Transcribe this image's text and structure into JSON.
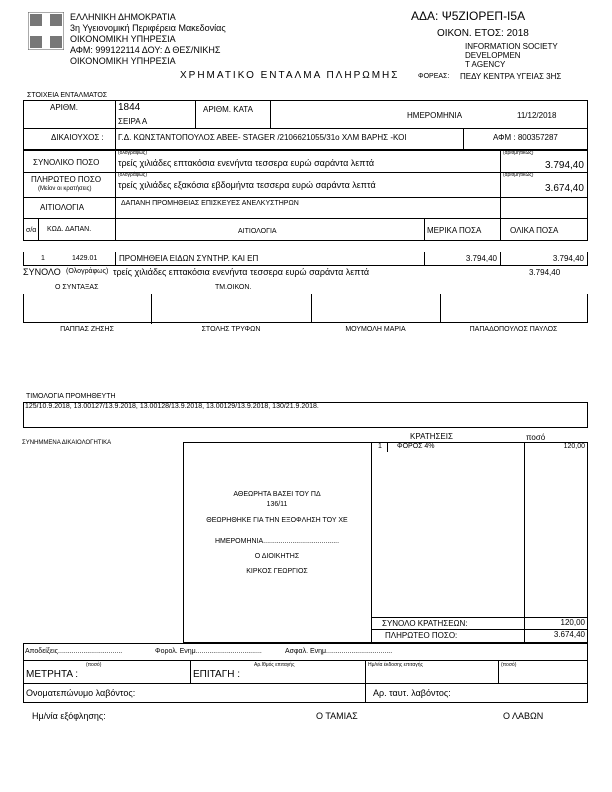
{
  "header": {
    "org_lines": [
      "ΕΛΛΗΝΙΚΗ ΔΗΜΟΚΡΑΤΙΑ",
      "3η Υγειονομική Περιφέρεια Μακεδονίας",
      "ΟΙΚΟΝΟΜΙΚΗ ΥΠΗΡΕΣΙΑ",
      "ΑΦΜ: 999122114 ΔΟΥ: Δ ΘΕΣ/ΝΙΚΗΣ",
      "ΟΙΚΟΝΟΜΙΚΗ ΥΠΗΡΕΣΙΑ"
    ],
    "ada": "ΑΔΑ: Ψ5ΖΙΟΡΕΠ-Ι5Α",
    "fiscal_year": "ΟΙΚΟΝ. ΕΤΟΣ: 2018",
    "stamp_lines": [
      "INFORMATION SOCIETY",
      "DEVELOPMEN",
      "T AGENCY"
    ],
    "title": "ΧΡΗΜΑΤΙΚΟ ΕΝΤΑΛΜΑ ΠΛΗΡΩΜΗΣ",
    "foreas_label": "ΦΟΡΕΑΣ:",
    "foreas_value": "ΠΕΔΥ ΚΕΝΤΡΑ ΥΓΕΙΑΣ 3ΗΣ"
  },
  "section_label": "ΣΤΟΙΧΕΙΑ ΕΝΤΑΛΜΑΤΟΣ",
  "order": {
    "number_label": "ΑΡΙΘΜ.",
    "number": "1844",
    "series": "ΣΕΙΡΑ Α",
    "kata_label": "ΑΡΙΘΜ. ΚΑΤΑ",
    "date_label": "ΗΜΕΡΟΜΗΝΙΑ",
    "date": "11/12/2018",
    "beneficiary_label": "ΔΙΚΑΙΟΥΧΟΣ :",
    "beneficiary": "Γ.Δ. ΚΩΝΣΤΑΝΤΟΠΟΥΛΟΣ ΑΒΕΕ- STAGER /2106621055/31ο ΧΛΜ ΒΑΡΗΣ -ΚΟΙ",
    "afm": "ΑΦΜ : 800357287"
  },
  "amounts": {
    "words_hint": "(ολογράφως)",
    "digits_hint": "(αριθμητικώς)",
    "total_label": "ΣΥΝΟΛΙΚΟ ΠΟΣΟ",
    "total_words": "τρείς χιλιάδες επτακόσια ενενήντα τεσσερα  ευρώ  σαράντα  λεπτά",
    "total": "3.794,40",
    "payable_label": "ΠΛΗΡΩΤΕΟ ΠΟΣΟ",
    "payable_sub": "(Μείον οι κρατήσεις)",
    "payable_words": "τρείς χιλιάδες εξακόσια  εβδομήντα τεσσερα  ευρώ  σαράντα  λεπτά",
    "payable": "3.674,40",
    "reason_label": "ΑΙΤΙΟΛΟΓΙΑ",
    "reason": "ΔΑΠΑΝΗ ΠΡΟΜΗΘΕΙΑΣ ΕΠΙΣΚΕΥΕΣ ΑΝΕΛΚΥΣΤΗΡΩΝ"
  },
  "items_table": {
    "headers": [
      "σ/α",
      "ΚΩΔ. ΔΑΠΑΝ.",
      "ΑΙΤΙΟΛΟΓΙΑ",
      "ΜΕΡΙΚΑ ΠΟΣΑ",
      "ΟΛΙΚΑ ΠΟΣΑ"
    ],
    "rows": [
      [
        "1",
        "1429.01",
        "ΠΡΟΜΗΘΕΙΑ ΕΙΔΩΝ ΣΥΝΤΗΡ. ΚΑΙ ΕΠ",
        "3.794,40",
        "3.794,40"
      ]
    ],
    "sum_label": "ΣΥΝΟΛΟ",
    "sum_hint": "(Ολογράφως)",
    "sum_words": "τρείς χιλιάδες επτακόσια ενενήντα τεσσερα  ευρώ  σαράντα  λεπτά",
    "sum": "3.794,40"
  },
  "signatures": {
    "headers": [
      "Ο ΣΥΝΤΑΞΑΣ",
      "ΤΜ.ΟΙΚΟΝ."
    ],
    "names": [
      "ΠΑΠΠΑΣ ΖΗΣΗΣ",
      "ΣΤΟΛΗΣ ΤΡΥΦΩΝ",
      "ΜΟΥΜΟΛΗ ΜΑΡΙΑ",
      "ΠΑΠΑΔΟΠΟΥΛΟΣ ΠΑΥΛΟΣ"
    ]
  },
  "invoices": {
    "label": "ΤΙΜΟΛΟΓΙΑ ΠΡΟΜΗΘΕΥΤΗ",
    "value": "125/10.9.2018, 13.00127/13.9.2018, 13.00128/13.9.2018, 13.00129/13.9.2018, 130/21.9.2018."
  },
  "attachments_label": "ΣΥΝΗΜΜΕΝΑ ΔΙΚΑΙΟΛΟΓΗΤΙΚΑ",
  "approval": {
    "lines": [
      "ΑΘΕΩΡΗΤΑ ΒΑΣΕΙ ΤΟΥ ΠΔ",
      "136/11",
      "ΘΕΩΡΗΘΗΚΕ ΓΙΑ ΤΗΝ ΕΞΟΦΛΗΣΗ ΤΟΥ ΧΕ",
      "ΗΜΕΡΟΜΗΝΙΑ.......................................",
      "Ο ΔΙΟΙΚΗΤΗΣ",
      "ΚΙΡΚΟΣ ΓΕΩΡΓΙΟΣ"
    ]
  },
  "deductions": {
    "label": "ΚΡΑΤΗΣΕΙΣ",
    "amount_label": "ποσό",
    "rows": [
      {
        "no": "1",
        "name": "ΦΟΡΟΣ 4%",
        "amount": "120,00"
      }
    ],
    "total_label": "ΣΥΝΟΛΟ ΚΡΑΤΗΣΕΩΝ:",
    "total": "120,00",
    "payable_label": "ΠΛΗΡΩΤΕΟ ΠΟΣΟ:",
    "payable": "3.674,40"
  },
  "payment": {
    "receipts": "Αποδείξεις.................................",
    "tax_cert": "Φορολ. Ενημ..................................",
    "ins_cert": "Ασφαλ. Ενημ..................................",
    "cash_label": "ΜΕΤΡΗΤΑ :",
    "amount_hint": "(ποσό)",
    "cheque_label": "ΕΠΙΤΑΓΗ :",
    "cheque_no_hint": "Αρ.Ιθμός επιταγής",
    "cheque_date_hint": "Ημ/νία έκδοσης επιταγής",
    "cheque_amount_hint": "(ποσό)",
    "receiver_name_label": "Ονοματεπώνυμο λαβόντος:",
    "receiver_id_label": "Αρ. ταυτ. λαβόντος:"
  },
  "footer": {
    "date_label": "Ημ/νία εξόφλησης:",
    "cashier": "Ο ΤΑΜΙΑΣ",
    "receiver": "Ο ΛΑΒΩΝ"
  }
}
